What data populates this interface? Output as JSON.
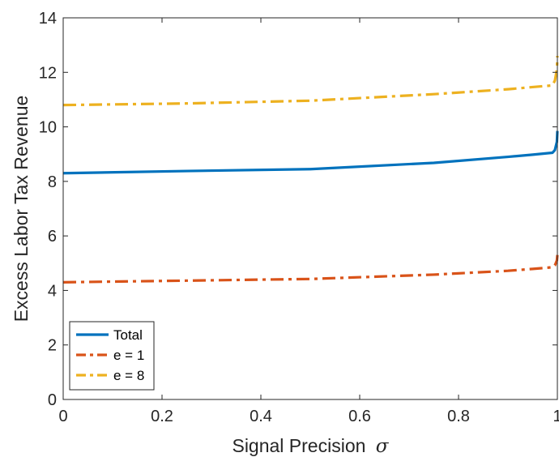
{
  "chart_data": {
    "type": "line",
    "xlabel": "Signal Precision",
    "xlabel_symbol": "σ",
    "ylabel": "Excess Labor Tax Revenue",
    "xlim": [
      0,
      1
    ],
    "ylim": [
      0,
      14
    ],
    "xticks": [
      0,
      0.2,
      0.4,
      0.6,
      0.8,
      1
    ],
    "xtick_labels": [
      "0",
      "0.2",
      "0.4",
      "0.6",
      "0.8",
      "1"
    ],
    "yticks": [
      0,
      2,
      4,
      6,
      8,
      10,
      12,
      14
    ],
    "ytick_labels": [
      "0",
      "2",
      "4",
      "6",
      "8",
      "10",
      "12",
      "14"
    ],
    "grid": false,
    "legend_position": "bottom-left",
    "series": [
      {
        "name": "Total",
        "color": "#0072BD",
        "style": "solid",
        "x": [
          0,
          0.25,
          0.5,
          0.75,
          0.9,
          0.95,
          0.99,
          0.995,
          0.999,
          1.0
        ],
        "y": [
          8.3,
          8.38,
          8.45,
          8.68,
          8.9,
          8.98,
          9.05,
          9.15,
          9.45,
          9.85
        ]
      },
      {
        "name": "e = 1",
        "color": "#D95319",
        "style": "dashdot",
        "x": [
          0,
          0.25,
          0.5,
          0.75,
          0.9,
          0.95,
          0.99,
          0.995,
          0.999,
          1.0
        ],
        "y": [
          4.3,
          4.36,
          4.42,
          4.58,
          4.72,
          4.79,
          4.85,
          4.92,
          5.1,
          5.3
        ]
      },
      {
        "name": "e = 8",
        "color": "#EDB120",
        "style": "dashdot",
        "x": [
          0,
          0.25,
          0.5,
          0.75,
          0.9,
          0.95,
          0.99,
          0.995,
          0.999,
          1.0
        ],
        "y": [
          10.8,
          10.86,
          10.96,
          11.2,
          11.38,
          11.46,
          11.52,
          11.7,
          12.1,
          12.6
        ]
      }
    ]
  }
}
